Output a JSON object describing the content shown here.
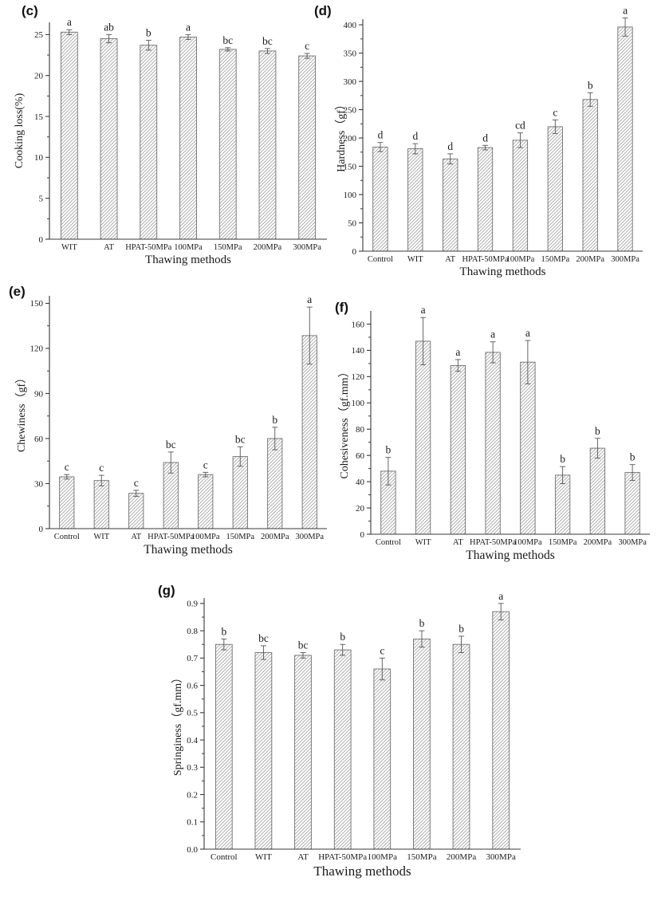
{
  "page": {
    "background": "#ffffff"
  },
  "colors": {
    "bar_fill": "#ffffff",
    "hatch_line": "#9a9a9a",
    "bar_stroke": "#6f6f6f",
    "axis": "#3a3a3a",
    "error_bar": "#555555",
    "text": "#1a1a1a"
  },
  "chart_data": [
    {
      "id": "c",
      "panel_label": "(c)",
      "type": "bar",
      "title": "",
      "xlabel": "Thawing methods",
      "ylabel": "Cooking loss(%)",
      "categories": [
        "WIT",
        "AT",
        "HPAT-50MPa",
        "100MPa",
        "150MPa",
        "200MPa",
        "300MPa"
      ],
      "values": [
        25.3,
        24.5,
        23.7,
        24.7,
        23.2,
        23.0,
        22.4
      ],
      "errors": [
        0.3,
        0.5,
        0.6,
        0.3,
        0.2,
        0.3,
        0.3
      ],
      "sig_letters": [
        "a",
        "ab",
        "b",
        "a",
        "bc",
        "bc",
        "c"
      ],
      "ylim": [
        0,
        26.5
      ],
      "yticks": [
        "0",
        "5",
        "10",
        "15",
        "20",
        "25"
      ],
      "yminor_step": 2.5,
      "grid": false,
      "legend": null,
      "bar_pattern": "diagonal-hatch"
    },
    {
      "id": "d",
      "panel_label": "(d)",
      "type": "bar",
      "title": "",
      "xlabel": "Thawing methods",
      "ylabel": "Hardness（gf）",
      "categories": [
        "Control",
        "WIT",
        "AT",
        "HPAT-50MPa",
        "100MPa",
        "150MPa",
        "200MPa",
        "300MPa"
      ],
      "values": [
        184,
        181,
        163,
        183,
        196,
        220,
        268,
        396
      ],
      "errors": [
        8,
        9,
        9,
        4,
        13,
        12,
        12,
        16
      ],
      "sig_letters": [
        "d",
        "d",
        "d",
        "d",
        "cd",
        "c",
        "b",
        "a"
      ],
      "ylim": [
        0,
        410
      ],
      "yticks": [
        "0",
        "50",
        "100",
        "150",
        "200",
        "250",
        "300",
        "350",
        "400"
      ],
      "yminor_step": 25,
      "grid": false,
      "legend": null,
      "bar_pattern": "diagonal-hatch"
    },
    {
      "id": "e",
      "panel_label": "(e)",
      "type": "bar",
      "title": "",
      "xlabel": "Thawing methods",
      "ylabel": "Chewiness（gf）",
      "categories": [
        "Control",
        "WIT",
        "AT",
        "HPAT-50MPa",
        "100MPa",
        "150MPa",
        "200MPa",
        "300MPa"
      ],
      "values": [
        34.5,
        32,
        23.5,
        44,
        36,
        48,
        60,
        128.5
      ],
      "errors": [
        1.5,
        3.5,
        2,
        7,
        1.5,
        6.5,
        7.5,
        19
      ],
      "sig_letters": [
        "c",
        "c",
        "c",
        "bc",
        "c",
        "bc",
        "b",
        "a"
      ],
      "ylim": [
        0,
        155
      ],
      "yticks": [
        "0",
        "30",
        "60",
        "90",
        "120",
        "150"
      ],
      "yminor_step": 15,
      "grid": false,
      "legend": null,
      "bar_pattern": "diagonal-hatch"
    },
    {
      "id": "f",
      "panel_label": "(f)",
      "type": "bar",
      "title": "",
      "xlabel": "Thawing methods",
      "ylabel": "Cohesiveness（gf.mm）",
      "categories": [
        "Control",
        "WIT",
        "AT",
        "HPAT-50MPa",
        "100MPa",
        "150MPa",
        "200MPa",
        "300MPa"
      ],
      "values": [
        48,
        147,
        128.5,
        138.5,
        131,
        45,
        65.5,
        47
      ],
      "errors": [
        10.5,
        18,
        4.5,
        8,
        16.5,
        6.5,
        7.5,
        6
      ],
      "sig_letters": [
        "b",
        "a",
        "a",
        "a",
        "a",
        "b",
        "b",
        "b"
      ],
      "ylim": [
        0,
        170
      ],
      "yticks": [
        "0",
        "20",
        "40",
        "60",
        "80",
        "100",
        "120",
        "140",
        "160"
      ],
      "yminor_step": 10,
      "grid": false,
      "legend": null,
      "bar_pattern": "diagonal-hatch"
    },
    {
      "id": "g",
      "panel_label": "(g)",
      "type": "bar",
      "title": "",
      "xlabel": "Thawing methods",
      "ylabel": "Springiness（gf.mm）",
      "categories": [
        "Control",
        "WIT",
        "AT",
        "HPAT-50MPa",
        "100MPa",
        "150MPa",
        "200MPa",
        "300MPa"
      ],
      "values": [
        0.75,
        0.72,
        0.71,
        0.73,
        0.66,
        0.77,
        0.75,
        0.87
      ],
      "errors": [
        0.02,
        0.025,
        0.01,
        0.02,
        0.04,
        0.03,
        0.03,
        0.03
      ],
      "sig_letters": [
        "b",
        "bc",
        "bc",
        "b",
        "c",
        "b",
        "b",
        "a"
      ],
      "ylim": [
        0,
        0.92
      ],
      "yticks": [
        "0.0",
        "0.1",
        "0.2",
        "0.3",
        "0.4",
        "0.5",
        "0.6",
        "0.7",
        "0.8",
        "0.9"
      ],
      "yminor_step": 0.05,
      "grid": false,
      "legend": null,
      "bar_pattern": "diagonal-hatch"
    }
  ]
}
